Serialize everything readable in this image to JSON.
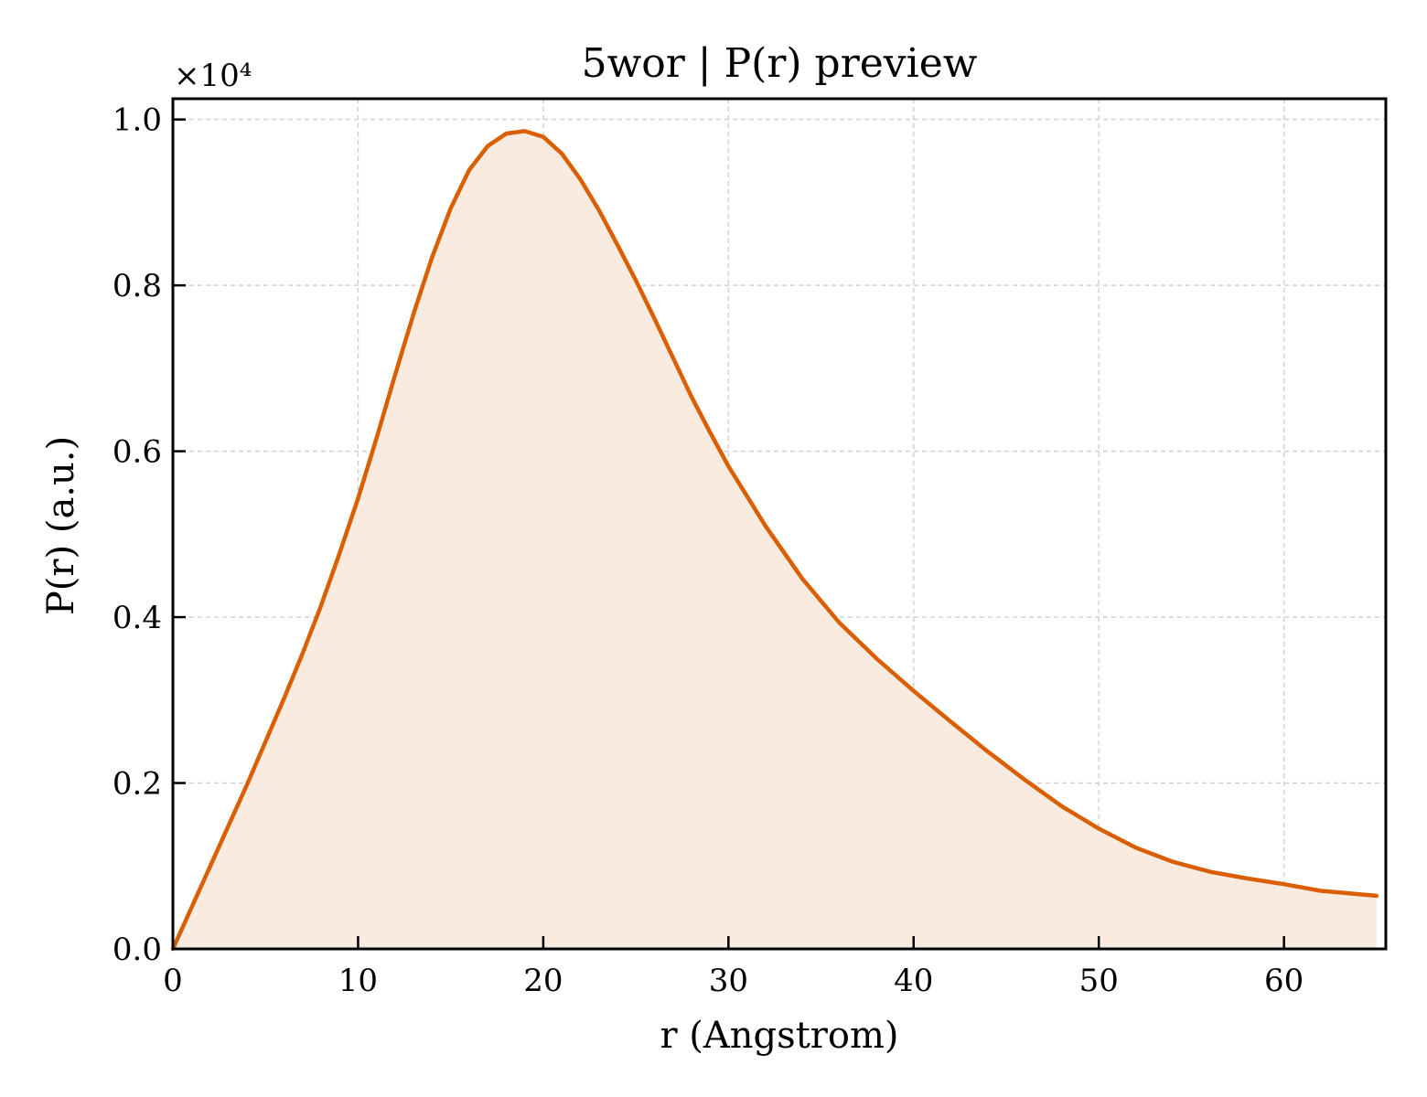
{
  "chart_data": {
    "type": "area",
    "title": "5wor | P(r) preview",
    "xlabel": "r (Angstrom)",
    "ylabel": "P(r) (a.u.)",
    "y_scale_note": "×10⁴",
    "xlim": [
      0,
      65.5
    ],
    "ylim": [
      0,
      1.025
    ],
    "x_ticks": [
      0,
      10,
      20,
      30,
      40,
      50,
      60
    ],
    "x_tick_labels": [
      "0",
      "10",
      "20",
      "30",
      "40",
      "50",
      "60"
    ],
    "y_ticks": [
      0,
      0.2,
      0.4,
      0.6,
      0.8,
      1.0
    ],
    "y_tick_labels": [
      "0.0",
      "0.2",
      "0.4",
      "0.6",
      "0.8",
      "1.0"
    ],
    "grid": true,
    "line_color": "#d95f02",
    "fill_color": "#f9ebe0",
    "series": [
      {
        "x": [
          0,
          2,
          4,
          6,
          7,
          8,
          9,
          10,
          11,
          12,
          13,
          14,
          15,
          16,
          17,
          18,
          19,
          20,
          21,
          22,
          23,
          24,
          25,
          26,
          27,
          28,
          29,
          30,
          32,
          34,
          36,
          38,
          40,
          42,
          44,
          46,
          48,
          50,
          52,
          54,
          56,
          58,
          60,
          62,
          63,
          64,
          65
        ],
        "y": [
          0,
          0.099,
          0.198,
          0.302,
          0.356,
          0.414,
          0.477,
          0.543,
          0.616,
          0.692,
          0.766,
          0.834,
          0.893,
          0.939,
          0.968,
          0.983,
          0.986,
          0.979,
          0.959,
          0.928,
          0.891,
          0.849,
          0.806,
          0.76,
          0.713,
          0.666,
          0.623,
          0.582,
          0.51,
          0.446,
          0.393,
          0.35,
          0.311,
          0.274,
          0.238,
          0.204,
          0.172,
          0.145,
          0.122,
          0.105,
          0.093,
          0.085,
          0.078,
          0.07,
          0.068,
          0.066,
          0.064
        ]
      }
    ]
  }
}
